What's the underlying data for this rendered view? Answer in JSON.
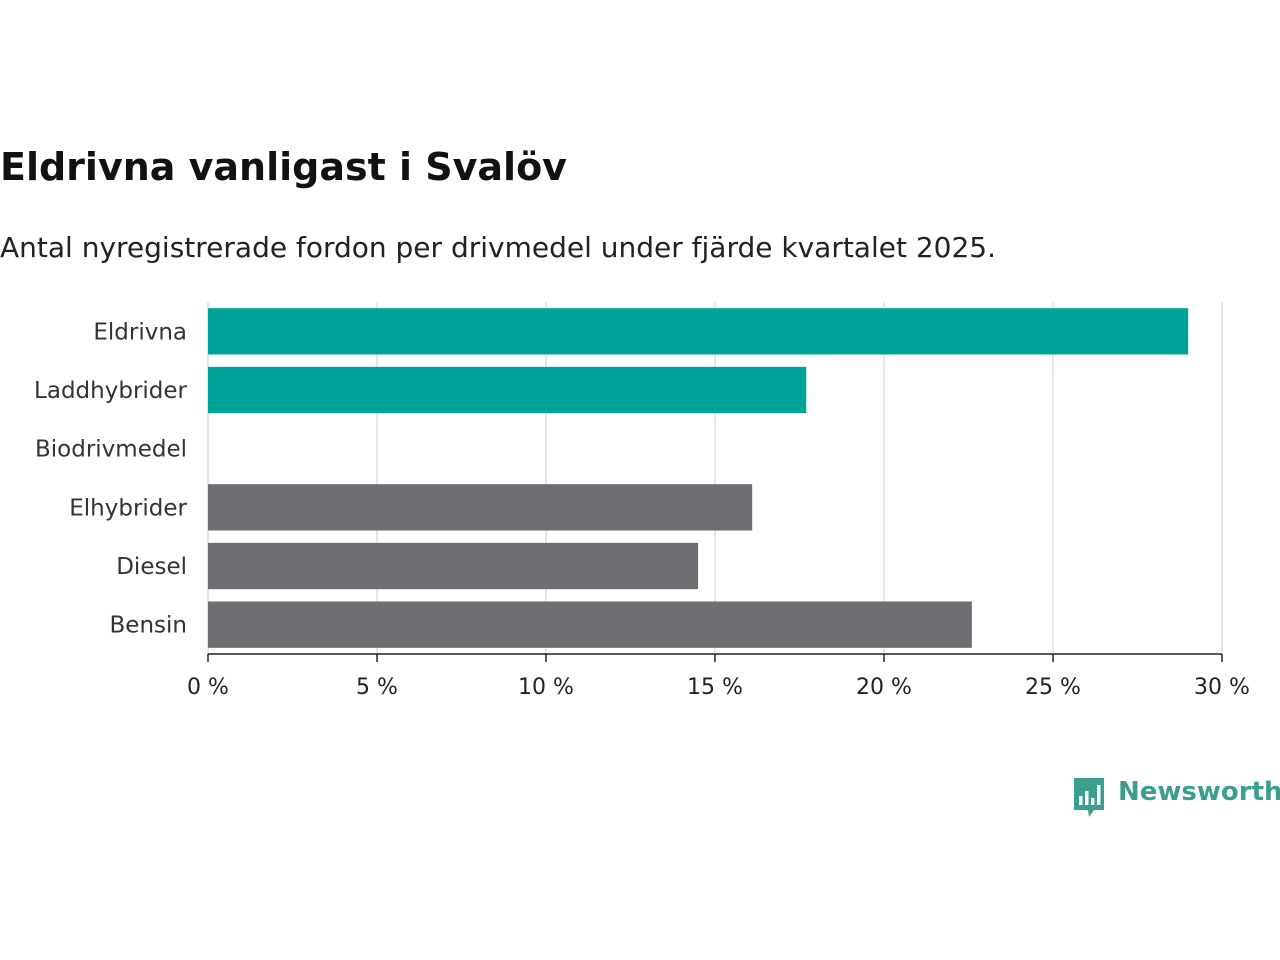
{
  "header": {
    "title": "Eldrivna vanligast i Svalöv",
    "subtitle": "Antal nyregistrerade fordon per drivmedel under fjärde kvartalet 2025."
  },
  "chart_data": {
    "type": "bar",
    "orientation": "horizontal",
    "title": "Eldrivna vanligast i Svalöv",
    "subtitle": "Antal nyregistrerade fordon per drivmedel under fjärde kvartalet 2025.",
    "xlabel": "",
    "ylabel": "",
    "xlim": [
      0,
      30
    ],
    "xticks": [
      0,
      5,
      10,
      15,
      20,
      25,
      30
    ],
    "xtick_labels": [
      "0 %",
      "5 %",
      "10 %",
      "15 %",
      "20 %",
      "25 %",
      "30 %"
    ],
    "grid": true,
    "categories": [
      "Eldrivna",
      "Laddhybrider",
      "Biodrivmedel",
      "Elhybrider",
      "Diesel",
      "Bensin"
    ],
    "values": [
      29.0,
      17.7,
      0,
      16.1,
      14.5,
      22.6
    ],
    "bar_colors": [
      "#00a39a",
      "#00a39a",
      "#00a39a",
      "#6e6d72",
      "#6e6d72",
      "#6e6d72"
    ]
  },
  "colors": {
    "highlight": "#00a39a",
    "other": "#6e6d72",
    "grid": "#dddddd",
    "axis": "#222222",
    "brand": "#3a9f8f"
  },
  "footer": {
    "logo_text": "Newsworthy",
    "logo_icon": "bar-chart-speech-bubble-icon"
  }
}
